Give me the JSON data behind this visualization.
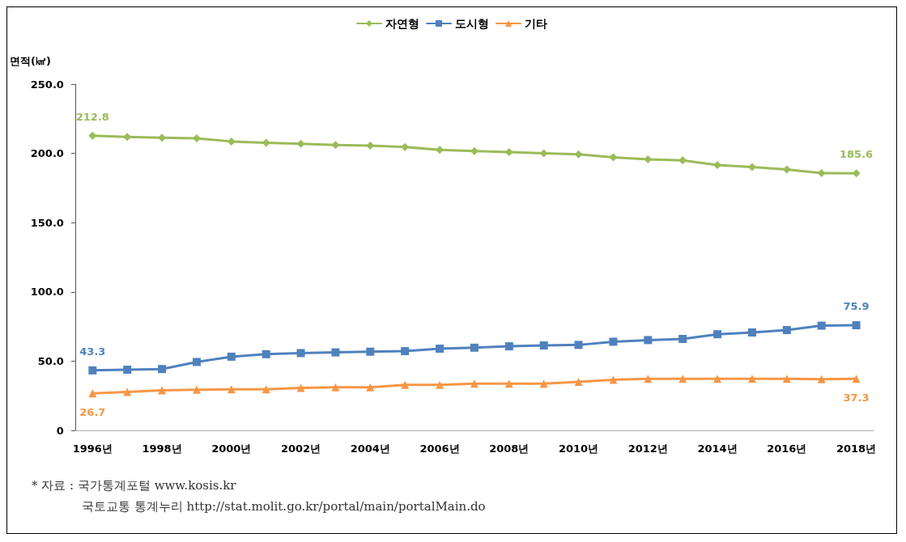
{
  "chart_data": {
    "type": "line",
    "ylabel": "면적(㎢)",
    "categories": [
      "1996년",
      null,
      "1998년",
      null,
      "2000년",
      null,
      "2002년",
      null,
      "2004년",
      null,
      "2006년",
      null,
      "2008년",
      null,
      "2010년",
      null,
      "2012년",
      null,
      "2014년",
      null,
      "2016년",
      null,
      "2018년"
    ],
    "series": [
      {
        "name": "자연형",
        "color": "#9bbb59",
        "marker": "diamond",
        "values": [
          212.8,
          211.9,
          211.3,
          210.8,
          208.6,
          207.7,
          206.9,
          206.1,
          205.6,
          204.6,
          202.5,
          201.6,
          201.0,
          200.1,
          199.3,
          197.1,
          195.7,
          195.0,
          191.6,
          190.1,
          188.4,
          185.7,
          185.6
        ],
        "value_labels": [
          "212.8",
          null,
          null,
          null,
          null,
          null,
          null,
          null,
          null,
          null,
          null,
          null,
          null,
          null,
          null,
          null,
          null,
          null,
          null,
          null,
          null,
          null,
          "185.6"
        ]
      },
      {
        "name": "도시형",
        "color": "#4f81bd",
        "marker": "square",
        "values": [
          43.3,
          43.8,
          44.3,
          49.4,
          53.2,
          55.0,
          55.8,
          56.3,
          56.8,
          57.2,
          59.0,
          59.7,
          60.7,
          61.3,
          61.7,
          64.0,
          65.2,
          66.0,
          69.4,
          70.7,
          72.4,
          75.6,
          75.9
        ],
        "value_labels": [
          "43.3",
          null,
          null,
          null,
          null,
          null,
          null,
          null,
          null,
          null,
          null,
          null,
          null,
          null,
          null,
          null,
          null,
          null,
          null,
          null,
          null,
          null,
          "75.9"
        ]
      },
      {
        "name": "기타",
        "color": "#f79646",
        "marker": "triangle",
        "values": [
          26.7,
          27.7,
          28.9,
          29.3,
          29.7,
          29.7,
          30.6,
          31.1,
          31.1,
          32.9,
          32.9,
          33.7,
          33.8,
          33.8,
          35.0,
          36.5,
          37.3,
          37.3,
          37.3,
          37.3,
          37.3,
          37.0,
          37.3
        ],
        "value_labels": [
          "26.7",
          null,
          null,
          null,
          null,
          null,
          null,
          null,
          null,
          null,
          null,
          null,
          null,
          null,
          null,
          null,
          null,
          null,
          null,
          null,
          null,
          null,
          "37.3"
        ]
      }
    ],
    "ylim": [
      0,
      250
    ],
    "yticks": [
      {
        "value": 0,
        "label": "0"
      },
      {
        "value": 50,
        "label": "50.0"
      },
      {
        "value": 100,
        "label": "100.0"
      },
      {
        "value": 150,
        "label": "150.0"
      },
      {
        "value": 200,
        "label": "200.0"
      },
      {
        "value": 250,
        "label": "250.0"
      }
    ],
    "grid": false,
    "legend": "top",
    "line_style": "solid",
    "annotations": [
      "* 자료 : 국가통계포털 www.kosis.kr",
      "국토교통 통계누리 http://stat.molit.go.kr/portal/main/portalMain.do"
    ]
  }
}
